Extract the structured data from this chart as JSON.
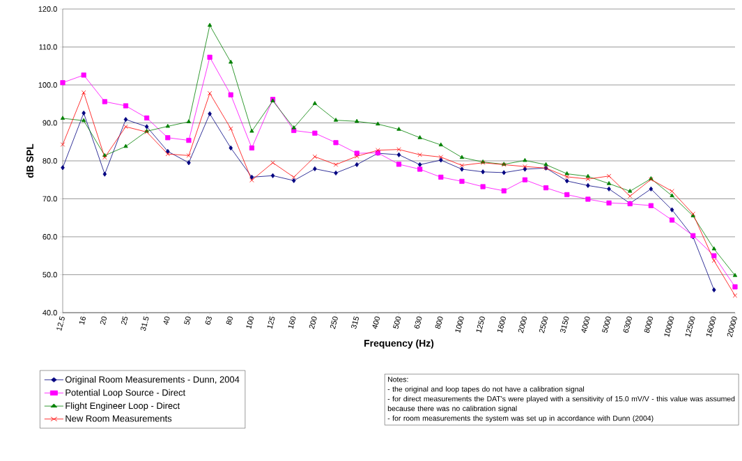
{
  "chart_data": {
    "type": "line",
    "xlabel": "Frequency (Hz)",
    "ylabel": "dB SPL",
    "categories": [
      "12.5",
      "16",
      "20",
      "25",
      "31.5",
      "40",
      "50",
      "63",
      "80",
      "100",
      "125",
      "160",
      "200",
      "250",
      "315",
      "400",
      "500",
      "630",
      "800",
      "1000",
      "1250",
      "1600",
      "2000",
      "2500",
      "3150",
      "4000",
      "5000",
      "6300",
      "8000",
      "10000",
      "12500",
      "16000",
      "20000"
    ],
    "series": [
      {
        "name": "Original Room Measurements - Dunn, 2004",
        "color": "#000080",
        "marker": "diamond",
        "values": [
          78.2,
          92.6,
          76.5,
          90.9,
          89.0,
          82.5,
          79.5,
          92.4,
          83.4,
          75.7,
          76.1,
          74.8,
          77.9,
          76.8,
          79.0,
          82.0,
          81.6,
          79.0,
          80.2,
          77.8,
          77.1,
          76.9,
          77.8,
          78.1,
          74.7,
          73.5,
          72.6,
          68.8,
          72.6,
          67.1,
          60.0,
          46.0,
          null
        ]
      },
      {
        "name": "Potential Loop Source - Direct",
        "color": "#ff00ff",
        "marker": "square",
        "values": [
          100.6,
          102.6,
          95.6,
          94.5,
          91.3,
          86.1,
          85.4,
          107.3,
          97.4,
          83.4,
          96.2,
          88.0,
          87.3,
          84.8,
          82.0,
          82.1,
          79.1,
          77.8,
          75.7,
          74.6,
          73.2,
          72.1,
          75.0,
          72.9,
          71.1,
          69.9,
          68.9,
          68.7,
          68.2,
          64.4,
          60.3,
          55.0,
          46.8
        ]
      },
      {
        "name": "Flight Engineer Loop - Direct",
        "color": "#008000",
        "marker": "triangle",
        "values": [
          91.2,
          90.6,
          81.4,
          83.8,
          87.8,
          89.1,
          90.3,
          115.7,
          106.0,
          87.8,
          95.8,
          88.7,
          95.1,
          90.7,
          90.4,
          89.7,
          88.3,
          86.1,
          84.2,
          80.9,
          79.7,
          79.1,
          80.1,
          79.0,
          76.6,
          75.9,
          74.0,
          72.0,
          75.3,
          70.8,
          65.5,
          56.8,
          49.8
        ]
      },
      {
        "name": "New Room Measurements",
        "color": "#ff0000",
        "marker": "cross",
        "values": [
          84.3,
          98.0,
          80.9,
          89.0,
          87.6,
          81.8,
          81.4,
          97.8,
          88.5,
          74.9,
          79.5,
          75.7,
          81.1,
          79.0,
          81.2,
          82.8,
          83.0,
          81.6,
          81.0,
          78.8,
          79.5,
          79.0,
          78.5,
          78.1,
          75.8,
          75.2,
          76.0,
          70.7,
          75.1,
          72.0,
          66.0,
          53.7,
          44.5
        ]
      }
    ],
    "ylim": [
      40,
      120
    ],
    "yticks": [
      {
        "value": 40,
        "label": "40.0"
      },
      {
        "value": 50,
        "label": "50.0"
      },
      {
        "value": 60,
        "label": "60.0"
      },
      {
        "value": 70,
        "label": "70.0"
      },
      {
        "value": 80,
        "label": "80.0"
      },
      {
        "value": 90,
        "label": "90.0"
      },
      {
        "value": 100,
        "label": "100.0"
      },
      {
        "value": 110,
        "label": "110.0"
      },
      {
        "value": 120,
        "label": "120.0"
      }
    ],
    "grid": "y",
    "legend": "bottom left",
    "line_style": "solid",
    "annotations": [
      "Notes:",
      "- the original and loop tapes do not have a calibration signal",
      "- for direct measurements the DAT's were played with a sensitivity of 15.0 mV/V - this value was assumed because there was no calibration signal",
      "- for room measurements the system was set up in accordance with Dunn (2004)"
    ]
  }
}
